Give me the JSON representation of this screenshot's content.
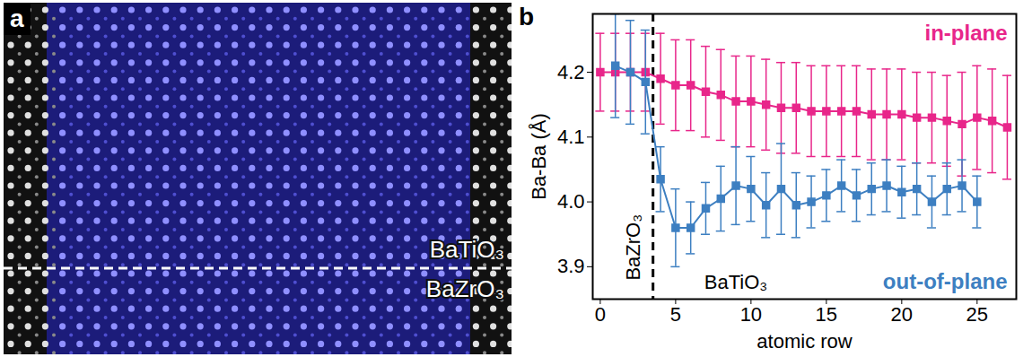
{
  "image": {
    "letter": "a",
    "upper_label": "BaTiO₃",
    "lower_label": "BaZrO₃"
  },
  "chart_data": {
    "type": "line",
    "letter": "b",
    "x_label": "atomic row",
    "y_label": "Ba-Ba (Å)",
    "xlim": [
      -0.5,
      27.6
    ],
    "ylim": [
      3.85,
      4.29
    ],
    "xticks": [
      0,
      5,
      10,
      15,
      20,
      25
    ],
    "yticks": [
      {
        "value": 3.9,
        "label": "3.9"
      },
      {
        "value": 4,
        "label": "4.0"
      },
      {
        "value": 4.1,
        "label": "4.1"
      },
      {
        "value": 4.2,
        "label": "4.2"
      }
    ],
    "interface_x": 3.5,
    "annotations": [
      {
        "text": "BaZrO₃",
        "x": 2.2,
        "y": 3.93,
        "orientation": "vertical"
      },
      {
        "text": "BaTiO₃",
        "x": 9,
        "y": 3.875
      }
    ],
    "series": [
      {
        "name": "in-plane",
        "color": "#e8268a",
        "marker": "square",
        "line_style": "solid",
        "x": [
          0,
          1,
          2,
          3,
          4,
          5,
          6,
          7,
          8,
          9,
          10,
          11,
          12,
          13,
          14,
          15,
          16,
          17,
          18,
          19,
          20,
          21,
          22,
          23,
          24,
          25,
          26,
          27
        ],
        "values": [
          4.2,
          4.2,
          4.2,
          4.2,
          4.19,
          4.18,
          4.18,
          4.17,
          4.165,
          4.155,
          4.155,
          4.15,
          4.145,
          4.145,
          4.14,
          4.14,
          4.14,
          4.14,
          4.135,
          4.135,
          4.135,
          4.13,
          4.13,
          4.125,
          4.12,
          4.13,
          4.125,
          4.115
        ],
        "errors": [
          0.06,
          0.06,
          0.06,
          0.06,
          0.07,
          0.07,
          0.07,
          0.07,
          0.07,
          0.07,
          0.07,
          0.07,
          0.07,
          0.07,
          0.07,
          0.07,
          0.07,
          0.07,
          0.07,
          0.07,
          0.07,
          0.07,
          0.07,
          0.07,
          0.08,
          0.08,
          0.08,
          0.08
        ]
      },
      {
        "name": "out-of-plane",
        "color": "#3d7fc1",
        "marker": "square",
        "line_style": "solid",
        "x": [
          1,
          2,
          3,
          4,
          5,
          6,
          7,
          8,
          9,
          10,
          11,
          12,
          13,
          14,
          15,
          16,
          17,
          18,
          19,
          20,
          21,
          22,
          23,
          24,
          25
        ],
        "values": [
          4.21,
          4.2,
          4.185,
          4.035,
          3.96,
          3.96,
          3.99,
          4.005,
          4.025,
          4.02,
          3.995,
          4.02,
          3.995,
          4.0,
          4.01,
          4.025,
          4.01,
          4.02,
          4.025,
          4.015,
          4.02,
          4.0,
          4.02,
          4.025,
          4.0
        ],
        "errors": [
          0.08,
          0.08,
          0.08,
          0.05,
          0.06,
          0.04,
          0.04,
          0.05,
          0.06,
          0.05,
          0.05,
          0.07,
          0.05,
          0.04,
          0.04,
          0.04,
          0.04,
          0.04,
          0.04,
          0.04,
          0.04,
          0.04,
          0.04,
          0.04,
          0.04
        ]
      }
    ]
  }
}
